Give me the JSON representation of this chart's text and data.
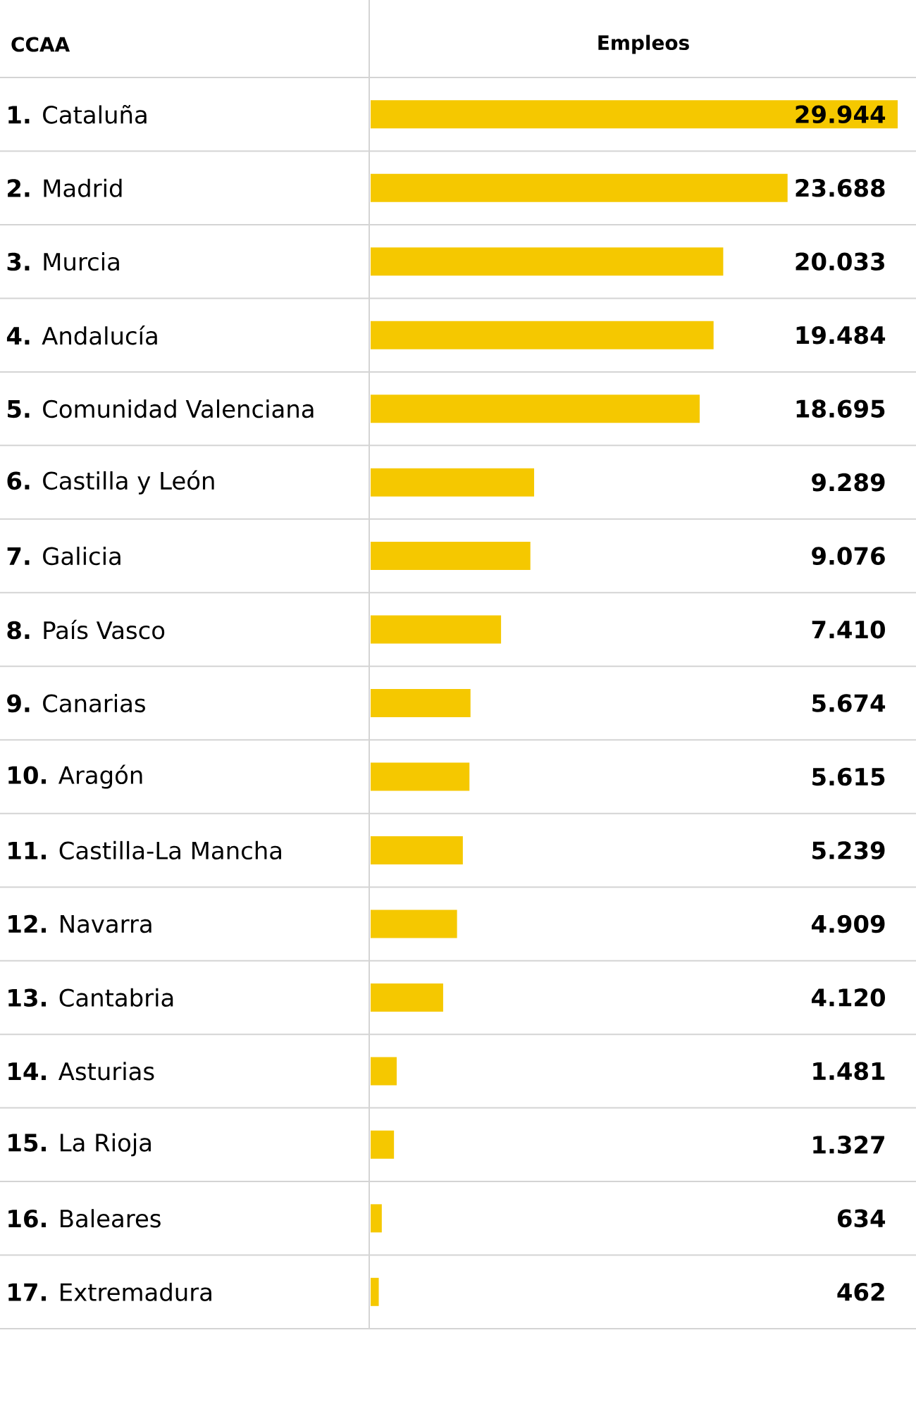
{
  "chart_data": {
    "type": "bar",
    "orientation": "horizontal",
    "ylabel": "CCAA",
    "xlabel": "Empleos",
    "tick_labels": "y",
    "color": "#f5c800",
    "categories": [
      "**1.** Cataluña",
      "**2.** Madrid",
      "**3.** Murcia",
      "**4.** Andalucía",
      "**5.** Comunidad Valenciana",
      "**6.** Castilla y León",
      "**7.** Galicia",
      "**8.** País Vasco",
      "**9.** Canarias",
      "**10.** Aragón",
      "**11.** Castilla-La Mancha",
      "**12.** Navarra",
      "**13.** Cantabria",
      "**14.** Asturias",
      "**15.** La Rioja",
      "**16.** Baleares",
      "**17.** Extremadura"
    ],
    "values": [
      29944,
      23688,
      20033,
      19484,
      18695,
      9289,
      9076,
      7410,
      5674,
      5615,
      5239,
      4909,
      4120,
      1481,
      1327,
      634,
      462
    ],
    "value_labels": [
      "29.944",
      "23.688",
      "20.033",
      "19.484",
      "18.695",
      "9.289",
      "9.076",
      "7.410",
      "5.674",
      "5.615",
      "5.239",
      "4.909",
      "4.120",
      "1.481",
      "1.327",
      "634",
      "462"
    ]
  }
}
